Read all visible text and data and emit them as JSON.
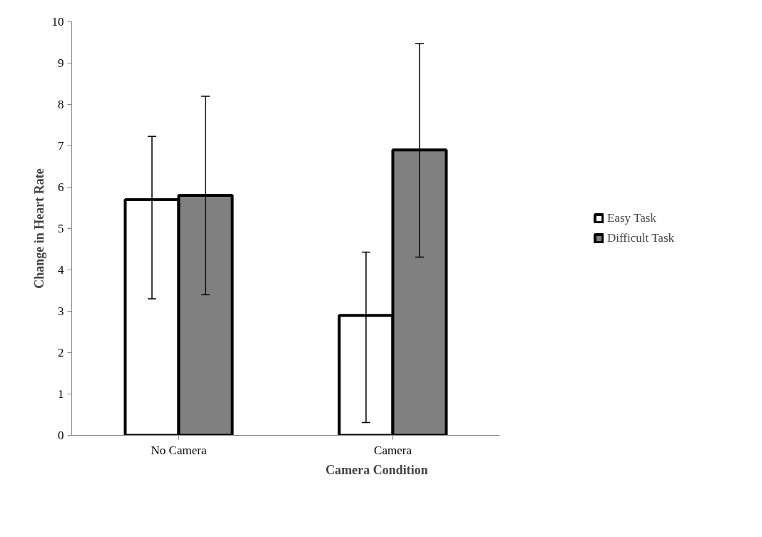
{
  "chart_data": {
    "type": "bar",
    "xlabel": "Camera Condition",
    "ylabel": "Change in Heart Rate",
    "categories": [
      "No Camera",
      "Camera"
    ],
    "series": [
      {
        "name": "Easy Task",
        "color": "#ffffff",
        "values": [
          5.7,
          2.9
        ],
        "errors": [
          [
            3.3,
            7.23
          ],
          [
            0.31,
            4.43
          ]
        ]
      },
      {
        "name": "Difficult Task",
        "color": "#808080",
        "values": [
          5.8,
          6.9
        ],
        "errors": [
          [
            3.4,
            8.2
          ],
          [
            4.31,
            9.47
          ]
        ]
      }
    ],
    "ylim": [
      0,
      10
    ],
    "yticks": [
      0,
      1,
      2,
      3,
      4,
      5,
      6,
      7,
      8,
      9,
      10
    ],
    "grid": false,
    "legend": "right"
  }
}
